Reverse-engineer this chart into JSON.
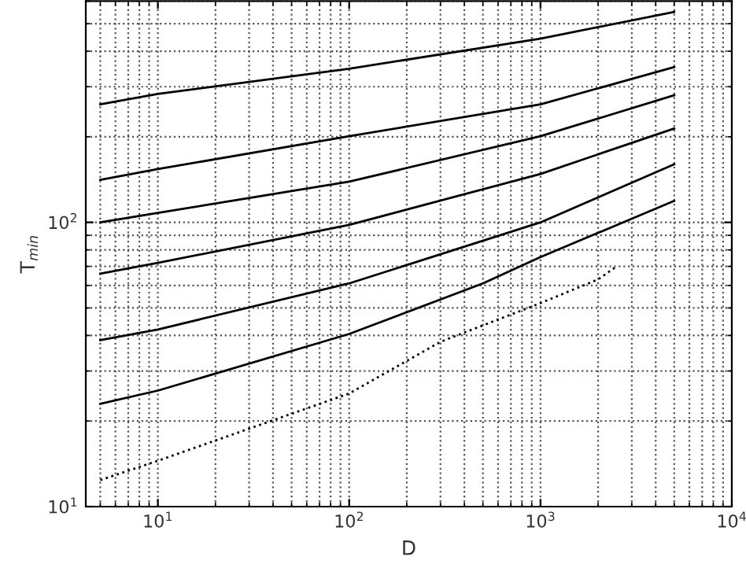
{
  "chart_data": {
    "type": "line",
    "xlabel": "D",
    "ylabel": "T$_{min}$",
    "log": "xy",
    "grid": true,
    "xlim": [
      4.2,
      10000
    ],
    "ylim": [
      10,
      600
    ],
    "xticks": [
      {
        "value": 10,
        "label": "10$^{1}$"
      },
      {
        "value": 100,
        "label": "10$^{2}$"
      },
      {
        "value": 1000,
        "label": "10$^{3}$"
      },
      {
        "value": 10000,
        "label": "10$^{4}$"
      }
    ],
    "yticks": [
      {
        "value": 10,
        "label": "10$^{1}$"
      },
      {
        "value": 100,
        "label": "10$^{2}$"
      }
    ],
    "x": [
      5,
      10,
      100,
      1000,
      5000
    ],
    "series": [
      {
        "color": "#000000",
        "line_style": "solid",
        "values": [
          260,
          283,
          347,
          443,
          550
        ]
      },
      {
        "color": "#000000",
        "line_style": "solid",
        "values": [
          141,
          154,
          201,
          260,
          352
        ]
      },
      {
        "color": "#000000",
        "line_style": "solid",
        "values": [
          100,
          108,
          139,
          201,
          280
        ]
      },
      {
        "color": "#000000",
        "line_style": "solid",
        "values": [
          66,
          72,
          98,
          148,
          214
        ]
      },
      {
        "color": "#000000",
        "line_style": "solid",
        "values": [
          38.5,
          42,
          61,
          100,
          160
        ]
      },
      {
        "color": "#000000",
        "line_style": "solid",
        "x": [
          5,
          10,
          100,
          500,
          1000,
          5000
        ],
        "values": [
          23,
          25.6,
          40.5,
          61,
          75.5,
          119
        ]
      },
      {
        "color": "#000000",
        "line_style": "dotted",
        "x": [
          5,
          10,
          100,
          300,
          1000,
          2000,
          2500
        ],
        "values": [
          12.4,
          14.5,
          25,
          38,
          52,
          63,
          70
        ]
      }
    ]
  }
}
